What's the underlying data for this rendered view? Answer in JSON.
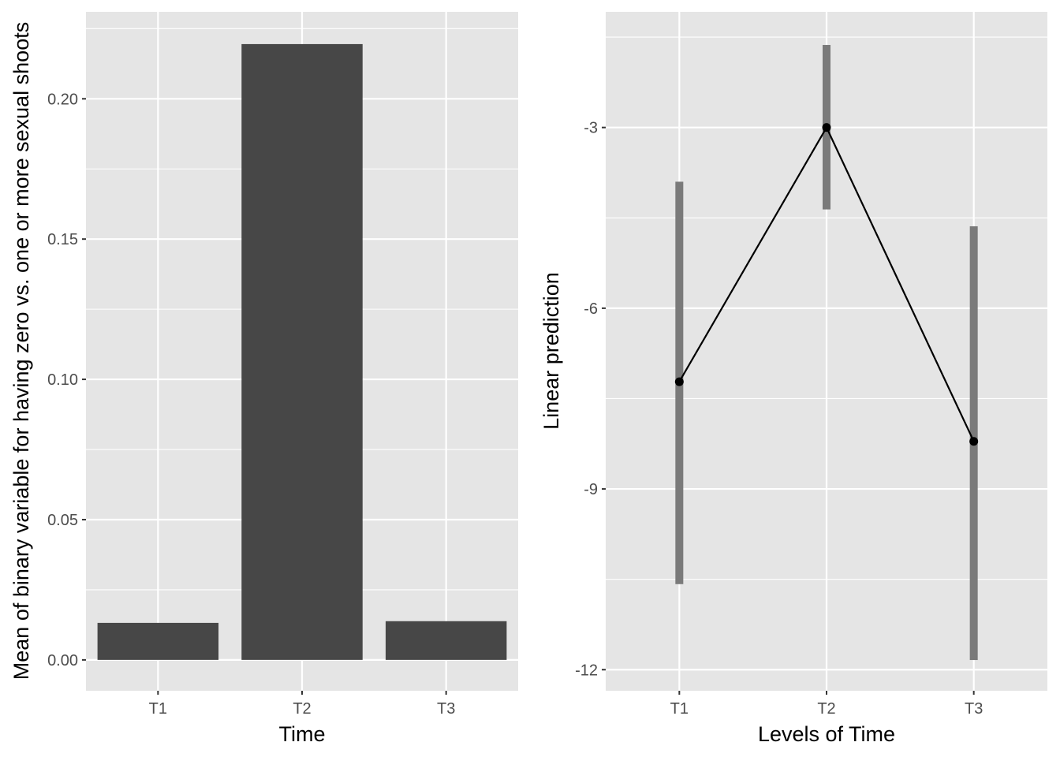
{
  "colors": {
    "panel_bg": "#e5e5e5",
    "grid": "#ffffff",
    "bar_fill": "#474747",
    "ci_fill": "#7a7a7a",
    "line": "#000000"
  },
  "chart_data": [
    {
      "type": "bar",
      "categories": [
        "T1",
        "T2",
        "T3"
      ],
      "values": [
        0.0132,
        0.2195,
        0.0138
      ],
      "xlabel": "Time",
      "ylabel": "Mean of binary variable for having zero vs. one or more sexual shoots",
      "ylim": [
        -0.011,
        0.231
      ],
      "yticks": [
        0.0,
        0.05,
        0.1,
        0.15,
        0.2
      ],
      "ytick_labels": [
        "0.00",
        "0.05",
        "0.10",
        "0.15",
        "0.20"
      ],
      "grid": true,
      "legend": "none"
    },
    {
      "type": "line",
      "categories": [
        "T1",
        "T2",
        "T3"
      ],
      "values": [
        -7.22,
        -3.0,
        -8.21
      ],
      "ci_low": [
        -10.58,
        -4.36,
        -11.84
      ],
      "ci_high": [
        -3.9,
        -1.63,
        -4.64
      ],
      "xlabel": "Levels of Time",
      "ylabel": "Linear prediction",
      "ylim": [
        -12.35,
        -1.08
      ],
      "yticks": [
        -12,
        -9,
        -6,
        -3
      ],
      "ytick_labels": [
        "-12",
        "-9",
        "-6",
        "-3"
      ],
      "grid": true,
      "legend": "none"
    }
  ]
}
